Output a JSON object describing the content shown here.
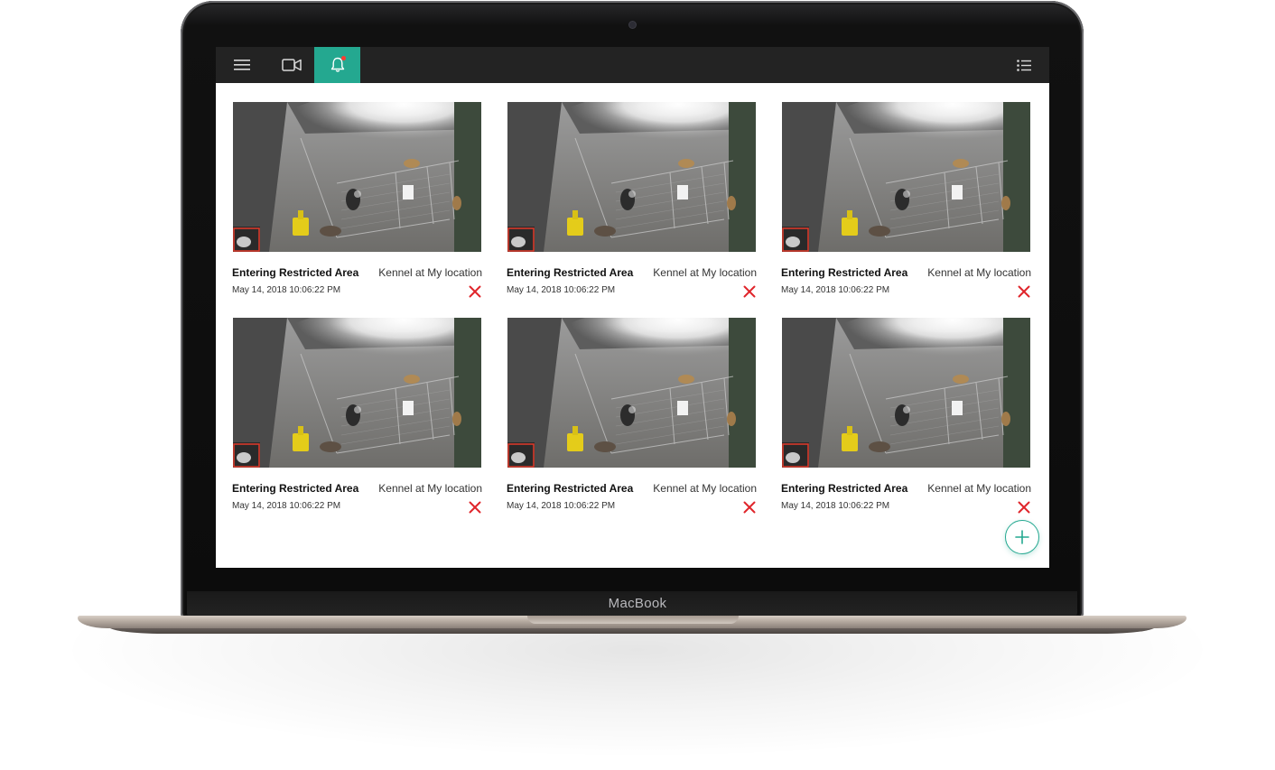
{
  "device": {
    "brand_label": "MacBook"
  },
  "topbar": {
    "menu_icon": "hamburger-icon",
    "video_icon": "video-camera-icon",
    "alerts_icon": "bell-icon",
    "list_icon": "list-view-icon",
    "active_color": "#24a890",
    "background_color": "#232323"
  },
  "events": [
    {
      "title": "Entering Restricted Area",
      "location": "Kennel at My location",
      "timestamp": "May 14, 2018 10:06:22 PM"
    },
    {
      "title": "Entering Restricted Area",
      "location": "Kennel at My location",
      "timestamp": "May 14, 2018 10:06:22 PM"
    },
    {
      "title": "Entering Restricted Area",
      "location": "Kennel at My location",
      "timestamp": "May 14, 2018 10:06:22 PM"
    },
    {
      "title": "Entering Restricted Area",
      "location": "Kennel at My location",
      "timestamp": "May 14, 2018 10:06:22 PM"
    },
    {
      "title": "Entering Restricted Area",
      "location": "Kennel at My location",
      "timestamp": "May 14, 2018 10:06:22 PM"
    },
    {
      "title": "Entering Restricted Area",
      "location": "Kennel at My location",
      "timestamp": "May 14, 2018 10:06:22 PM"
    }
  ],
  "delete_icon": "close-x-icon",
  "delete_color": "#e0252b",
  "add_button_icon": "plus-icon"
}
